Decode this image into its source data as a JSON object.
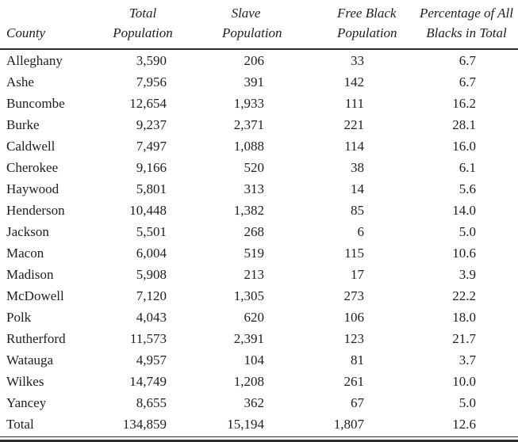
{
  "table": {
    "columns": [
      {
        "id": "county",
        "header_line1": "",
        "header_line2": "County"
      },
      {
        "id": "total_population",
        "header_line1": "Total",
        "header_line2": "Population"
      },
      {
        "id": "slave_population",
        "header_line1": "Slave",
        "header_line2": "Population"
      },
      {
        "id": "free_black_population",
        "header_line1": "Free Black",
        "header_line2": "Population"
      },
      {
        "id": "pct_blacks",
        "header_line1": "Percentage of All",
        "header_line2": "Blacks in Total"
      }
    ],
    "rows": [
      {
        "county": "Alleghany",
        "total_population": "3,590",
        "slave_population": "206",
        "free_black_population": "33",
        "pct_blacks": "6.7"
      },
      {
        "county": "Ashe",
        "total_population": "7,956",
        "slave_population": "391",
        "free_black_population": "142",
        "pct_blacks": "6.7"
      },
      {
        "county": "Buncombe",
        "total_population": "12,654",
        "slave_population": "1,933",
        "free_black_population": "111",
        "pct_blacks": "16.2"
      },
      {
        "county": "Burke",
        "total_population": "9,237",
        "slave_population": "2,371",
        "free_black_population": "221",
        "pct_blacks": "28.1"
      },
      {
        "county": "Caldwell",
        "total_population": "7,497",
        "slave_population": "1,088",
        "free_black_population": "114",
        "pct_blacks": "16.0"
      },
      {
        "county": "Cherokee",
        "total_population": "9,166",
        "slave_population": "520",
        "free_black_population": "38",
        "pct_blacks": "6.1"
      },
      {
        "county": "Haywood",
        "total_population": "5,801",
        "slave_population": "313",
        "free_black_population": "14",
        "pct_blacks": "5.6"
      },
      {
        "county": "Henderson",
        "total_population": "10,448",
        "slave_population": "1,382",
        "free_black_population": "85",
        "pct_blacks": "14.0"
      },
      {
        "county": "Jackson",
        "total_population": "5,501",
        "slave_population": "268",
        "free_black_population": "6",
        "pct_blacks": "5.0"
      },
      {
        "county": "Macon",
        "total_population": "6,004",
        "slave_population": "519",
        "free_black_population": "115",
        "pct_blacks": "10.6"
      },
      {
        "county": "Madison",
        "total_population": "5,908",
        "slave_population": "213",
        "free_black_population": "17",
        "pct_blacks": "3.9"
      },
      {
        "county": "McDowell",
        "total_population": "7,120",
        "slave_population": "1,305",
        "free_black_population": "273",
        "pct_blacks": "22.2"
      },
      {
        "county": "Polk",
        "total_population": "4,043",
        "slave_population": "620",
        "free_black_population": "106",
        "pct_blacks": "18.0"
      },
      {
        "county": "Rutherford",
        "total_population": "11,573",
        "slave_population": "2,391",
        "free_black_population": "123",
        "pct_blacks": "21.7"
      },
      {
        "county": "Watauga",
        "total_population": "4,957",
        "slave_population": "104",
        "free_black_population": "81",
        "pct_blacks": "3.7"
      },
      {
        "county": "Wilkes",
        "total_population": "14,749",
        "slave_population": "1,208",
        "free_black_population": "261",
        "pct_blacks": "10.0"
      },
      {
        "county": "Yancey",
        "total_population": "8,655",
        "slave_population": "362",
        "free_black_population": "67",
        "pct_blacks": "5.0"
      },
      {
        "county": "Total",
        "total_population": "134,859",
        "slave_population": "15,194",
        "free_black_population": "1,807",
        "pct_blacks": "12.6"
      }
    ]
  },
  "colors": {
    "ink": "#1e1e1e",
    "rule": "#2b2b2b",
    "background": "#ffffff"
  }
}
